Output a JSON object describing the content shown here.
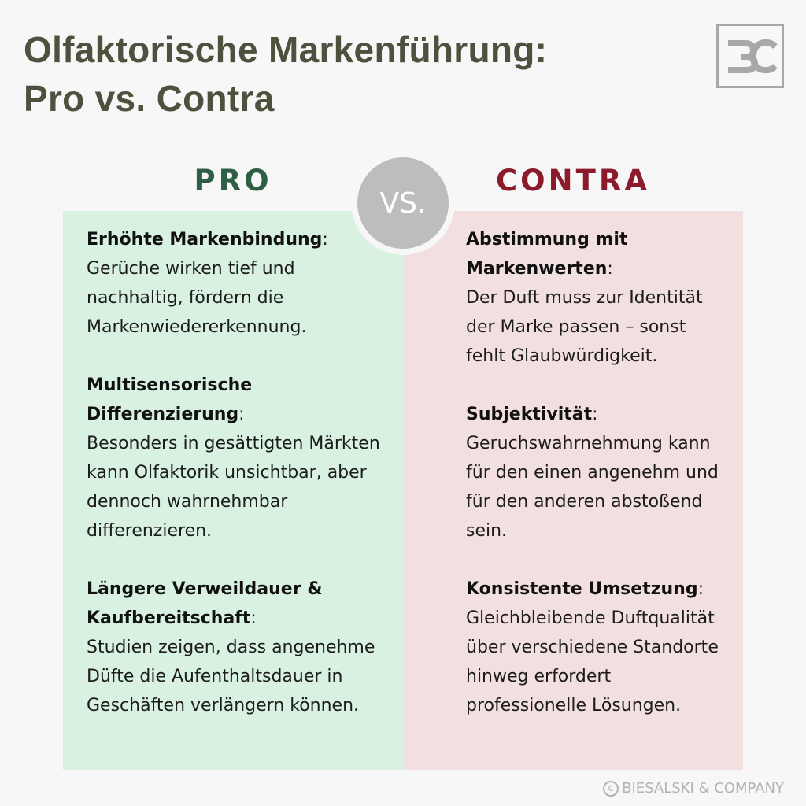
{
  "title": {
    "line1": "Olfaktorische Markenführung:",
    "line2": "Pro vs. Contra"
  },
  "logo": {
    "icon": "biesalski-company-logo-icon",
    "text": "BC"
  },
  "colors": {
    "title": "#50503f",
    "pro_heading": "#2e5e44",
    "contra_heading": "#8b1a2b",
    "pro_panel": "#d8f1e1",
    "contra_panel": "#f2dfe0",
    "vs_circle": "#bdbdbd"
  },
  "pro": {
    "heading": "PRO",
    "items": [
      {
        "head": "Erhöhte Markenbindung",
        "text": "Gerüche wirken tief und nachhaltig, fördern die Markenwiedererkennung."
      },
      {
        "head": "Multisensorische Differenzierung",
        "text": "Besonders in gesättigten Märkten kann Olfaktorik unsichtbar, aber dennoch wahrnehmbar differenzieren."
      },
      {
        "head": "Längere Verweildauer & Kaufbereitschaft",
        "text": "Studien zeigen, dass angenehme Düfte die Aufenthaltsdauer in Geschäften verlängern können."
      }
    ]
  },
  "vs": "VS.",
  "contra": {
    "heading": "CONTRA",
    "items": [
      {
        "head": "Abstimmung mit Markenwerten",
        "text": "Der Duft muss zur Identität der Marke passen – sonst fehlt Glaubwürdigkeit."
      },
      {
        "head": "Subjektivität",
        "text": "Geruchswahrnehmung kann für den einen angenehm und für den anderen abstoßend sein."
      },
      {
        "head": "Konsistente Umsetzung",
        "text": "Gleichbleibende Duftqualität über verschiedene Standorte hinweg erfordert professionelle Lösungen."
      }
    ]
  },
  "footer": {
    "copyright_symbol": "c",
    "text": "BIESALSKI & COMPANY"
  }
}
